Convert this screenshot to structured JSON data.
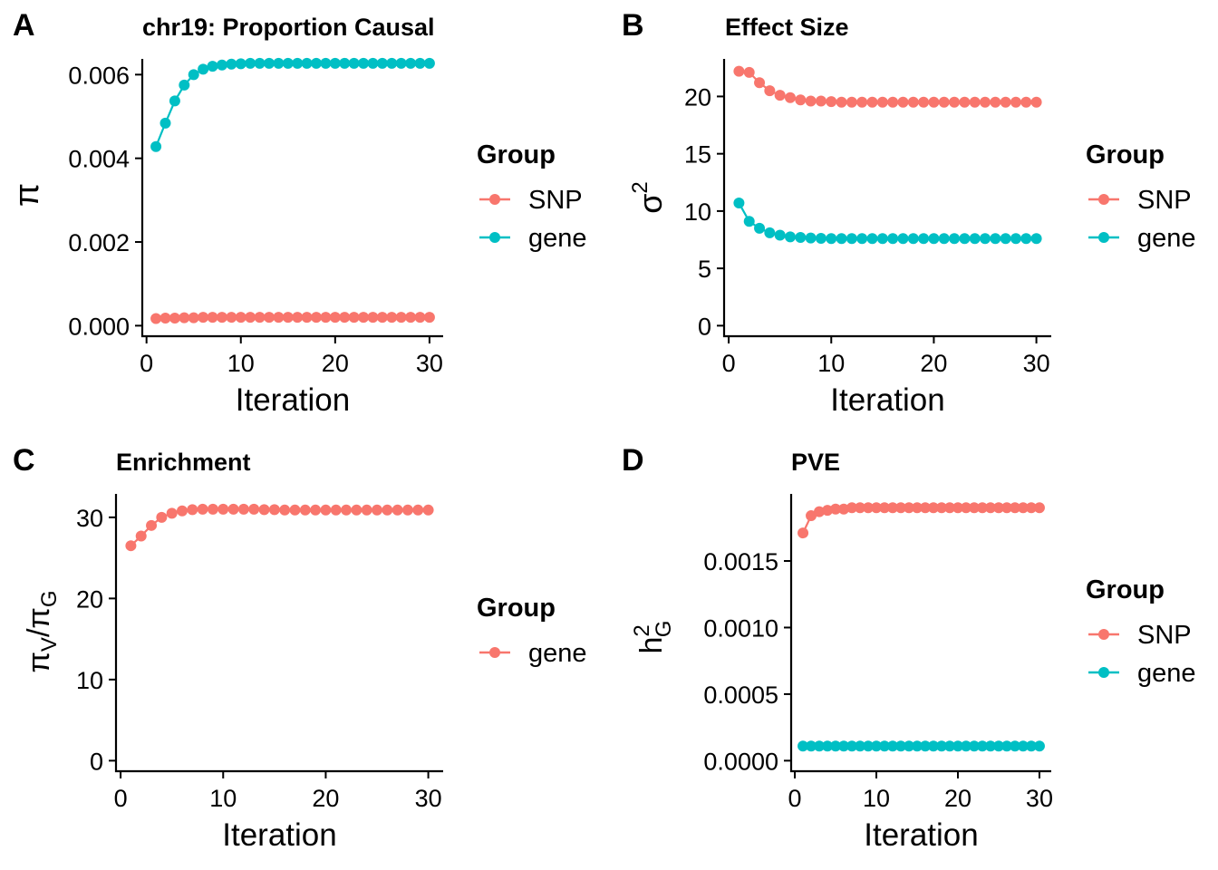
{
  "colors": {
    "snp": "#F8766D",
    "gene": "#00BFC4"
  },
  "chart_data": [
    {
      "id": "A",
      "letter": "A",
      "type": "line",
      "title": "chr19: Proportion Causal",
      "xlabel": "Iteration",
      "ylabel": "π",
      "xlim": [
        0,
        30
      ],
      "ylim": [
        0,
        0.0063
      ],
      "xticks": [
        "0",
        "10",
        "20",
        "30"
      ],
      "yticks": [
        "0.000",
        "0.002",
        "0.004",
        "0.006"
      ],
      "legend": {
        "title": "Group",
        "entries": [
          "SNP",
          "gene"
        ]
      },
      "x": [
        1,
        2,
        3,
        4,
        5,
        6,
        7,
        8,
        9,
        10,
        11,
        12,
        13,
        14,
        15,
        16,
        17,
        18,
        19,
        20,
        21,
        22,
        23,
        24,
        25,
        26,
        27,
        28,
        29,
        30
      ],
      "series": [
        {
          "name": "SNP",
          "color": "#F8766D",
          "values": [
            0.00017,
            0.00018,
            0.00018,
            0.00019,
            0.00019,
            0.0002,
            0.0002,
            0.0002,
            0.0002,
            0.0002,
            0.0002,
            0.0002,
            0.0002,
            0.0002,
            0.0002,
            0.0002,
            0.0002,
            0.0002,
            0.0002,
            0.0002,
            0.0002,
            0.0002,
            0.0002,
            0.0002,
            0.0002,
            0.0002,
            0.0002,
            0.0002,
            0.0002,
            0.0002
          ]
        },
        {
          "name": "gene",
          "color": "#00BFC4",
          "values": [
            0.00428,
            0.00484,
            0.00537,
            0.00575,
            0.006,
            0.00613,
            0.0062,
            0.00623,
            0.00625,
            0.00626,
            0.00627,
            0.00627,
            0.00627,
            0.00627,
            0.00627,
            0.00627,
            0.00627,
            0.00627,
            0.00627,
            0.00627,
            0.00627,
            0.00627,
            0.00627,
            0.00627,
            0.00627,
            0.00627,
            0.00627,
            0.00627,
            0.00627,
            0.00627
          ]
        }
      ]
    },
    {
      "id": "B",
      "letter": "B",
      "type": "line",
      "title": "Effect Size",
      "xlabel": "Iteration",
      "ylabel": "σ²",
      "xlim": [
        0,
        30
      ],
      "ylim": [
        0,
        23
      ],
      "xticks": [
        "0",
        "10",
        "20",
        "30"
      ],
      "yticks": [
        "0",
        "5",
        "10",
        "15",
        "20"
      ],
      "legend": {
        "title": "Group",
        "entries": [
          "SNP",
          "gene"
        ]
      },
      "x": [
        1,
        2,
        3,
        4,
        5,
        6,
        7,
        8,
        9,
        10,
        11,
        12,
        13,
        14,
        15,
        16,
        17,
        18,
        19,
        20,
        21,
        22,
        23,
        24,
        25,
        26,
        27,
        28,
        29,
        30
      ],
      "series": [
        {
          "name": "SNP",
          "color": "#F8766D",
          "values": [
            22.2,
            22.1,
            21.2,
            20.5,
            20.1,
            19.9,
            19.7,
            19.6,
            19.6,
            19.55,
            19.5,
            19.5,
            19.5,
            19.5,
            19.5,
            19.5,
            19.5,
            19.5,
            19.5,
            19.5,
            19.5,
            19.5,
            19.5,
            19.5,
            19.5,
            19.5,
            19.5,
            19.5,
            19.5,
            19.5
          ]
        },
        {
          "name": "gene",
          "color": "#00BFC4",
          "values": [
            10.7,
            9.1,
            8.5,
            8.1,
            7.9,
            7.75,
            7.7,
            7.65,
            7.62,
            7.6,
            7.6,
            7.6,
            7.6,
            7.6,
            7.6,
            7.6,
            7.6,
            7.6,
            7.6,
            7.6,
            7.6,
            7.6,
            7.6,
            7.6,
            7.6,
            7.6,
            7.6,
            7.6,
            7.6,
            7.6
          ]
        }
      ]
    },
    {
      "id": "C",
      "letter": "C",
      "type": "line",
      "title": "Enrichment",
      "xlabel": "Iteration",
      "ylabel": "πV/πG",
      "xlim": [
        0,
        30
      ],
      "ylim": [
        0,
        32.5
      ],
      "xticks": [
        "0",
        "10",
        "20",
        "30"
      ],
      "yticks": [
        "0",
        "10",
        "20",
        "30"
      ],
      "legend": {
        "title": "Group",
        "entries": [
          "gene"
        ]
      },
      "x": [
        1,
        2,
        3,
        4,
        5,
        6,
        7,
        8,
        9,
        10,
        11,
        12,
        13,
        14,
        15,
        16,
        17,
        18,
        19,
        20,
        21,
        22,
        23,
        24,
        25,
        26,
        27,
        28,
        29,
        30
      ],
      "series": [
        {
          "name": "gene",
          "color": "#F8766D",
          "values": [
            26.5,
            27.7,
            29.0,
            30.0,
            30.5,
            30.8,
            30.95,
            31.0,
            31.0,
            31.0,
            31.0,
            31.0,
            31.0,
            30.95,
            30.95,
            30.9,
            30.9,
            30.9,
            30.9,
            30.9,
            30.9,
            30.9,
            30.9,
            30.9,
            30.9,
            30.9,
            30.9,
            30.9,
            30.9,
            30.9
          ]
        }
      ]
    },
    {
      "id": "D",
      "letter": "D",
      "type": "line",
      "title": "PVE",
      "xlabel": "Iteration",
      "ylabel": "h²G",
      "xlim": [
        0,
        30
      ],
      "ylim": [
        0,
        0.00198
      ],
      "xticks": [
        "0",
        "10",
        "20",
        "30"
      ],
      "yticks": [
        "0.0000",
        "0.0005",
        "0.0010",
        "0.0015"
      ],
      "legend": {
        "title": "Group",
        "entries": [
          "SNP",
          "gene"
        ]
      },
      "x": [
        1,
        2,
        3,
        4,
        5,
        6,
        7,
        8,
        9,
        10,
        11,
        12,
        13,
        14,
        15,
        16,
        17,
        18,
        19,
        20,
        21,
        22,
        23,
        24,
        25,
        26,
        27,
        28,
        29,
        30
      ],
      "series": [
        {
          "name": "SNP",
          "color": "#F8766D",
          "values": [
            0.00171,
            0.00184,
            0.00187,
            0.00188,
            0.00189,
            0.00189,
            0.0019,
            0.0019,
            0.0019,
            0.0019,
            0.0019,
            0.0019,
            0.0019,
            0.0019,
            0.0019,
            0.0019,
            0.0019,
            0.0019,
            0.0019,
            0.0019,
            0.0019,
            0.0019,
            0.0019,
            0.0019,
            0.0019,
            0.0019,
            0.0019,
            0.0019,
            0.0019,
            0.0019
          ]
        },
        {
          "name": "gene",
          "color": "#00BFC4",
          "values": [
            0.00011,
            0.00011,
            0.00011,
            0.00011,
            0.00011,
            0.00011,
            0.00011,
            0.00011,
            0.00011,
            0.00011,
            0.00011,
            0.00011,
            0.00011,
            0.00011,
            0.00011,
            0.00011,
            0.00011,
            0.00011,
            0.00011,
            0.00011,
            0.00011,
            0.00011,
            0.00011,
            0.00011,
            0.00011,
            0.00011,
            0.00011,
            0.00011,
            0.00011,
            0.00011
          ]
        }
      ]
    }
  ]
}
